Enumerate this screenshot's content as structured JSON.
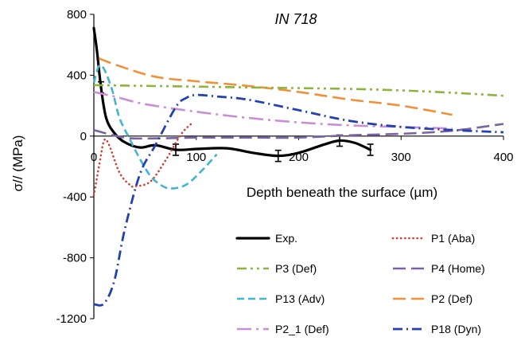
{
  "chart_data": {
    "type": "line",
    "title": "IN 718",
    "xlabel": "Depth beneath the surface (µm)",
    "ylabel": "σ// (MPa)",
    "xlim": [
      0,
      400
    ],
    "ylim": [
      -1200,
      800
    ],
    "x_ticks": [
      "0",
      "100",
      "200",
      "300",
      "400"
    ],
    "y_ticks": [
      "800",
      "400",
      "0",
      "-400",
      "-800",
      "-1200"
    ],
    "grid": false,
    "legend_position": "bottom-right",
    "series": [
      {
        "name": "Exp.",
        "color": "#000000",
        "style": "solid",
        "errorbars": true,
        "x": [
          0,
          3,
          7,
          12,
          20,
          30,
          45,
          60,
          80,
          100,
          130,
          155,
          180,
          200,
          225,
          240,
          255,
          270
        ],
        "y": [
          710,
          560,
          320,
          120,
          20,
          -40,
          -75,
          -60,
          -90,
          -85,
          -80,
          -110,
          -130,
          -110,
          -55,
          -30,
          -45,
          -90
        ]
      },
      {
        "name": "P1 (Aba)",
        "color": "#D43A2F",
        "style": "dotted",
        "x": [
          0,
          5,
          10,
          15,
          25,
          35,
          40,
          55,
          70,
          85,
          95
        ],
        "y": [
          -390,
          -200,
          -30,
          -60,
          -240,
          -320,
          -330,
          -300,
          -160,
          10,
          80
        ]
      },
      {
        "name": "P3 (Def)",
        "color": "#8DB43C",
        "style": "dash-dot-dot",
        "x": [
          0,
          50,
          100,
          150,
          200,
          250,
          300,
          350,
          400
        ],
        "y": [
          335,
          330,
          325,
          320,
          315,
          310,
          300,
          285,
          265
        ]
      },
      {
        "name": "P4 (Home)",
        "color": "#7A62A3",
        "style": "long-dash",
        "x": [
          0,
          30,
          60,
          100,
          150,
          200,
          250,
          300,
          350,
          400
        ],
        "y": [
          40,
          -10,
          -15,
          -10,
          -10,
          -10,
          5,
          15,
          35,
          80
        ]
      },
      {
        "name": "P13 (Adv)",
        "color": "#3FB5CF",
        "style": "dashed",
        "x": [
          0,
          5,
          10,
          18,
          25,
          35,
          45,
          55,
          65,
          75,
          90,
          105,
          120
        ],
        "y": [
          350,
          460,
          440,
          300,
          120,
          -20,
          -150,
          -260,
          -320,
          -345,
          -320,
          -230,
          -120
        ]
      },
      {
        "name": "P2 (Def)",
        "color": "#F0913A",
        "style": "long-dash",
        "x": [
          5,
          25,
          60,
          100,
          150,
          200,
          250,
          300,
          350
        ],
        "y": [
          510,
          460,
          390,
          360,
          330,
          290,
          240,
          200,
          140
        ]
      },
      {
        "name": "P2_1 (Def)",
        "color": "#C98FD6",
        "style": "long-dash-dot",
        "x": [
          0,
          20,
          50,
          100,
          150,
          200,
          250,
          300,
          350
        ],
        "y": [
          290,
          260,
          210,
          160,
          120,
          90,
          70,
          60,
          50
        ]
      },
      {
        "name": "P18 (Dyn)",
        "color": "#2340B0",
        "style": "dash-dot",
        "x": [
          0,
          10,
          20,
          30,
          45,
          60,
          80,
          90,
          100,
          120,
          150,
          200,
          250,
          300,
          350,
          400
        ],
        "y": [
          -1105,
          -1100,
          -950,
          -620,
          -250,
          -60,
          190,
          250,
          270,
          260,
          240,
          170,
          100,
          60,
          40,
          25
        ]
      }
    ]
  }
}
